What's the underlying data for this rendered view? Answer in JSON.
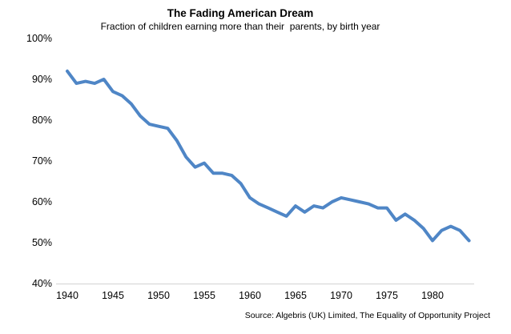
{
  "header": {
    "title": "The Fading American Dream",
    "subtitle": "Fraction of children earning more than their  parents, by birth year"
  },
  "footer": {
    "source": "Source: Algebris (UK) Limited, The Equality of Opportunity Project"
  },
  "chart_data": {
    "type": "line",
    "title": "The Fading American Dream",
    "subtitle": "Fraction of children earning more than their  parents, by birth year",
    "xlabel": "",
    "ylabel": "",
    "series_name": "fraction-earning-more-than-parents",
    "x": [
      1940,
      1941,
      1942,
      1943,
      1944,
      1945,
      1946,
      1947,
      1948,
      1949,
      1950,
      1951,
      1952,
      1953,
      1954,
      1955,
      1956,
      1957,
      1958,
      1959,
      1960,
      1961,
      1962,
      1963,
      1964,
      1965,
      1966,
      1967,
      1968,
      1969,
      1970,
      1971,
      1972,
      1973,
      1974,
      1975,
      1976,
      1977,
      1978,
      1979,
      1980,
      1981,
      1982,
      1983,
      1984
    ],
    "values": [
      92,
      89,
      89.5,
      89,
      90,
      87,
      86,
      84,
      81,
      79,
      78.5,
      78,
      75,
      71,
      68.5,
      69.5,
      67,
      67,
      66.5,
      64.5,
      61,
      59.5,
      58.5,
      57.5,
      56.5,
      59,
      57.5,
      59,
      58.5,
      60,
      61,
      60.5,
      60,
      59.5,
      58.5,
      58.5,
      55.5,
      57,
      55.5,
      53.5,
      50.5,
      53,
      54,
      53,
      50.5
    ],
    "x_ticks": [
      "1940",
      "1945",
      "1950",
      "1955",
      "1960",
      "1965",
      "1970",
      "1975",
      "1980"
    ],
    "y_ticks": [
      "100%",
      "90%",
      "80%",
      "70%",
      "60%",
      "50%",
      "40%"
    ],
    "xlim": [
      1940,
      1984
    ],
    "ylim": [
      40,
      100
    ],
    "grid": false,
    "legend": false,
    "line_color": "#4f86c6",
    "axis_line_color": "#d9d9d9",
    "source": "Source: Algebris (UK) Limited, The Equality of Opportunity Project"
  }
}
